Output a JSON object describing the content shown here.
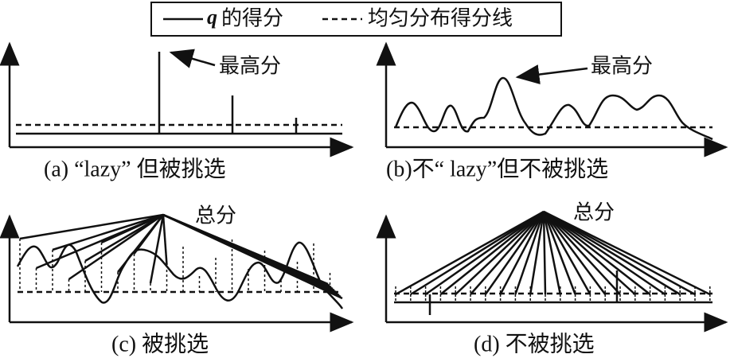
{
  "legend": {
    "items": [
      {
        "symbol": "q",
        "text": "的得分"
      },
      {
        "text": "均匀分布得分线"
      }
    ]
  },
  "panels": [
    {
      "caption": "(a) “lazy” 但被挑选",
      "annotation": "最高分"
    },
    {
      "caption": "(b)不“ lazy”但不被挑选",
      "annotation": "最高分"
    },
    {
      "caption": "(c) 被挑选",
      "annotation": "总分"
    },
    {
      "caption": "(d) 不被挑选",
      "annotation": "总分"
    }
  ]
}
